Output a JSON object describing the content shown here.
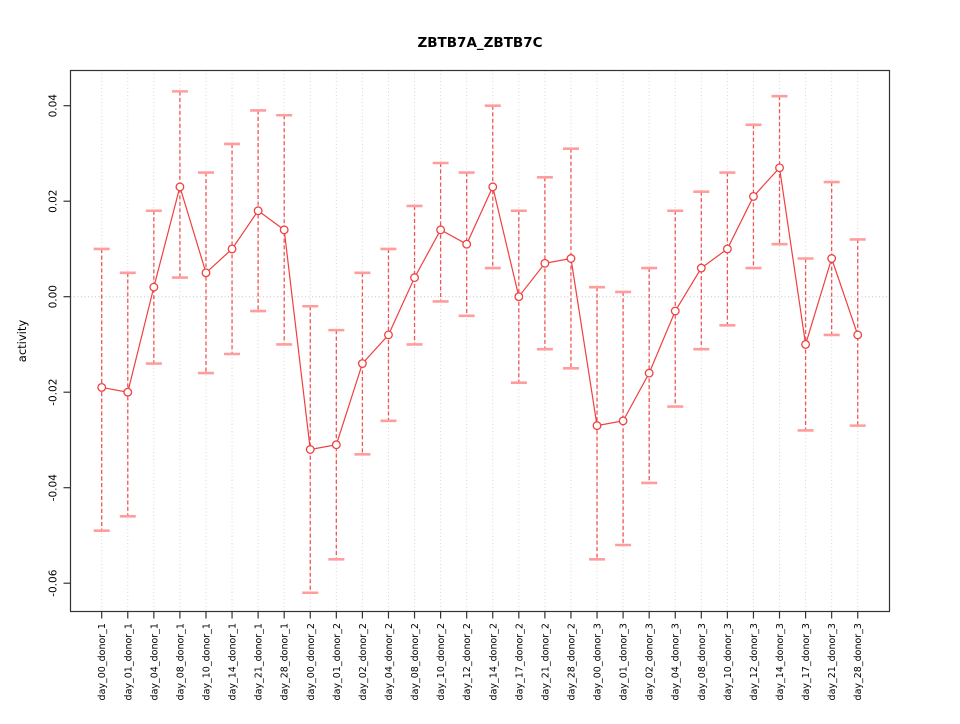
{
  "chart_data": {
    "type": "line",
    "title": "ZBTB7A_ZBTB7C",
    "xlabel": "",
    "ylabel": "activity",
    "ylim": [
      -0.066,
      0.046
    ],
    "yticks": [
      0.04,
      0.02,
      0.0,
      -0.02,
      -0.04,
      -0.06
    ],
    "ytick_labels": [
      "0.04",
      "0.02",
      "0.00",
      "-0.02",
      "-0.04",
      "-0.06"
    ],
    "grid": {
      "vertical_dotted_per_category": true,
      "horizontal_dotted_at_zero": true
    },
    "legend_position": "none",
    "categories": [
      "day_00_donor_1",
      "day_01_donor_1",
      "day_04_donor_1",
      "day_08_donor_1",
      "day_10_donor_1",
      "day_14_donor_1",
      "day_21_donor_1",
      "day_28_donor_1",
      "day_00_donor_2",
      "day_01_donor_2",
      "day_02_donor_2",
      "day_04_donor_2",
      "day_08_donor_2",
      "day_10_donor_2",
      "day_12_donor_2",
      "day_14_donor_2",
      "day_17_donor_2",
      "day_21_donor_2",
      "day_28_donor_2",
      "day_00_donor_3",
      "day_01_donor_3",
      "day_02_donor_3",
      "day_04_donor_3",
      "day_08_donor_3",
      "day_10_donor_3",
      "day_12_donor_3",
      "day_14_donor_3",
      "day_17_donor_3",
      "day_21_donor_3",
      "day_28_donor_3"
    ],
    "series": [
      {
        "name": "activity",
        "values": [
          -0.019,
          -0.02,
          0.002,
          0.023,
          0.005,
          0.01,
          0.018,
          0.014,
          -0.032,
          -0.031,
          -0.014,
          -0.008,
          0.004,
          0.014,
          0.011,
          0.023,
          0.0,
          0.007,
          0.008,
          -0.027,
          -0.026,
          -0.016,
          -0.003,
          0.006,
          0.01,
          0.021,
          0.027,
          -0.01,
          0.008,
          -0.008
        ],
        "err_low": [
          -0.049,
          -0.046,
          -0.014,
          0.004,
          -0.016,
          -0.012,
          -0.003,
          -0.01,
          -0.062,
          -0.055,
          -0.033,
          -0.026,
          -0.01,
          -0.001,
          -0.004,
          0.006,
          -0.018,
          -0.011,
          -0.015,
          -0.055,
          -0.052,
          -0.039,
          -0.023,
          -0.011,
          -0.006,
          0.006,
          0.011,
          -0.028,
          -0.008,
          -0.027
        ],
        "err_high": [
          0.01,
          0.005,
          0.018,
          0.043,
          0.026,
          0.032,
          0.039,
          0.038,
          -0.002,
          -0.007,
          0.005,
          0.01,
          0.019,
          0.028,
          0.026,
          0.04,
          0.018,
          0.025,
          0.031,
          0.002,
          0.001,
          0.006,
          0.018,
          0.022,
          0.026,
          0.036,
          0.042,
          0.008,
          0.024,
          0.012
        ]
      }
    ],
    "colors": {
      "line": "#f04040",
      "point": "#f04040",
      "error_line": "#f25555",
      "error_cap": "#ff9d9d",
      "grid": "#d8d8d8",
      "zero_line": "#c8c8c8",
      "axis": "#333333"
    }
  }
}
